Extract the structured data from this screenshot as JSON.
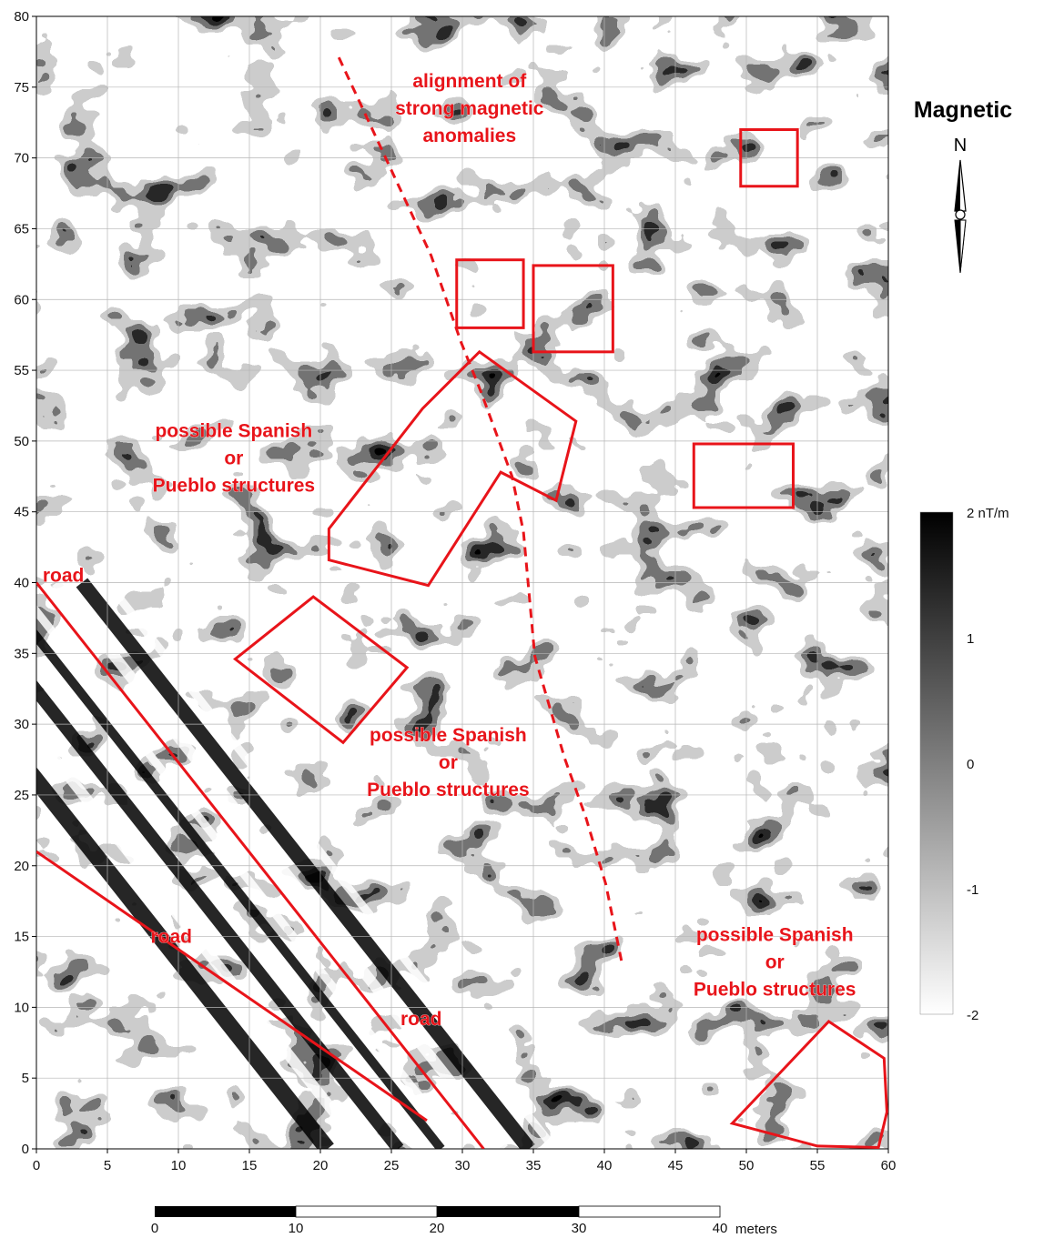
{
  "map": {
    "title": "Magnetic",
    "north_label": "N",
    "axes": {
      "x_range": [
        0,
        60
      ],
      "y_range": [
        0,
        80
      ],
      "x_ticks": [
        "0",
        "5",
        "10",
        "15",
        "20",
        "25",
        "30",
        "35",
        "40",
        "45",
        "50",
        "55",
        "60"
      ],
      "y_ticks": [
        "0",
        "5",
        "10",
        "15",
        "20",
        "25",
        "30",
        "35",
        "40",
        "45",
        "50",
        "55",
        "60",
        "65",
        "70",
        "75",
        "80"
      ]
    },
    "colorbar": {
      "labels": [
        "2 nT/m",
        "1",
        "0",
        "-1",
        "-2"
      ],
      "colors": [
        "#000000",
        "#ffffff"
      ]
    },
    "scale_bar": {
      "labels": [
        "0",
        "10",
        "20",
        "30",
        "40"
      ],
      "unit": "meters"
    },
    "annotation_color": "#e8141a",
    "annotations": [
      {
        "id": "alignment",
        "lines": [
          "alignment of",
          "strong magnetic",
          "anomalies"
        ],
        "x": 30.5,
        "y": 73.5
      },
      {
        "id": "spanish-upper",
        "lines": [
          "possible Spanish",
          "or",
          "Pueblo structures"
        ],
        "x": 13.9,
        "y": 48.8
      },
      {
        "id": "spanish-middle",
        "lines": [
          "possible Spanish",
          "or",
          "Pueblo structures"
        ],
        "x": 29.0,
        "y": 27.3
      },
      {
        "id": "spanish-lower",
        "lines": [
          "possible Spanish",
          "or",
          "Pueblo structures"
        ],
        "x": 52.0,
        "y": 13.2
      },
      {
        "id": "road-1",
        "lines": [
          "road"
        ],
        "x": 1.9,
        "y": 40.5
      },
      {
        "id": "road-2",
        "lines": [
          "road"
        ],
        "x": 9.5,
        "y": 15.0
      },
      {
        "id": "road-3",
        "lines": [
          "road"
        ],
        "x": 27.1,
        "y": 9.2
      }
    ],
    "boxes": [
      {
        "x0": 49.6,
        "x1": 53.6,
        "y0": 68.0,
        "y1": 72.0
      },
      {
        "x0": 29.6,
        "x1": 34.3,
        "y0": 58.0,
        "y1": 62.8
      },
      {
        "x0": 35.0,
        "x1": 40.6,
        "y0": 56.3,
        "y1": 62.4
      },
      {
        "x0": 46.3,
        "x1": 53.3,
        "y0": 45.3,
        "y1": 49.8
      }
    ],
    "polygons": [
      [
        [
          31.2,
          56.3
        ],
        [
          38.0,
          51.4
        ],
        [
          36.6,
          45.8
        ],
        [
          32.7,
          47.8
        ],
        [
          27.6,
          39.8
        ],
        [
          20.6,
          41.6
        ],
        [
          20.6,
          43.8
        ],
        [
          27.2,
          52.3
        ]
      ],
      [
        [
          14.0,
          34.6
        ],
        [
          19.5,
          39.0
        ],
        [
          26.1,
          34.0
        ],
        [
          21.6,
          28.7
        ]
      ],
      [
        [
          49.0,
          1.8
        ],
        [
          55.8,
          9.0
        ],
        [
          59.7,
          6.4
        ],
        [
          59.9,
          2.6
        ],
        [
          59.3,
          0.1
        ],
        [
          55.0,
          0.2
        ]
      ]
    ],
    "road_lines": [
      [
        [
          0.0,
          40.0
        ],
        [
          31.5,
          0.0
        ]
      ],
      [
        [
          0.0,
          21.0
        ],
        [
          27.5,
          2.0
        ]
      ]
    ],
    "alignment_line": [
      [
        21.3,
        77.1
      ],
      [
        27.8,
        63.1
      ],
      [
        29.9,
        57.0
      ],
      [
        31.3,
        53.5
      ],
      [
        33.5,
        47.5
      ],
      [
        34.3,
        43.6
      ],
      [
        35.1,
        34.8
      ],
      [
        37.2,
        27.6
      ],
      [
        38.7,
        23.4
      ],
      [
        40.1,
        18.7
      ],
      [
        41.2,
        13.3
      ]
    ]
  }
}
